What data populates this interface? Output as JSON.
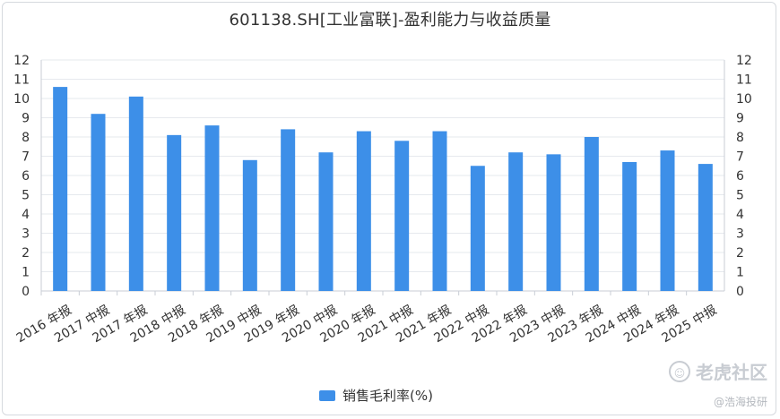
{
  "title": "601138.SH[工业富联]-盈利能力与收益质量",
  "legend": {
    "label": "销售毛利率(%)"
  },
  "colors": {
    "bar": "#3d8fe8",
    "grid": "#e6e9ee",
    "axis": "#333333"
  },
  "watermark": {
    "brand": "老虎社区",
    "sub": "@浩海投研"
  },
  "chart_data": {
    "type": "bar",
    "title": "601138.SH[工业富联]-盈利能力与收益质量",
    "ylim": [
      0,
      12
    ],
    "yticks": [
      0,
      1,
      2,
      3,
      4,
      5,
      6,
      7,
      8,
      9,
      10,
      11,
      12
    ],
    "grid": true,
    "legend_position": "bottom",
    "categories": [
      "2016 年报",
      "2017 中报",
      "2017 年报",
      "2018 中报",
      "2018 年报",
      "2019 中报",
      "2019 年报",
      "2020 中报",
      "2020 年报",
      "2021 中报",
      "2021 年报",
      "2022 中报",
      "2022 年报",
      "2023 中报",
      "2023 年报",
      "2024 中报",
      "2024 年报",
      "2025 中报"
    ],
    "series": [
      {
        "name": "销售毛利率(%)",
        "values": [
          10.6,
          9.2,
          10.1,
          8.1,
          8.6,
          6.8,
          8.4,
          7.2,
          8.3,
          7.8,
          8.3,
          6.5,
          7.2,
          7.1,
          8.0,
          6.7,
          7.3,
          6.6
        ]
      }
    ]
  }
}
